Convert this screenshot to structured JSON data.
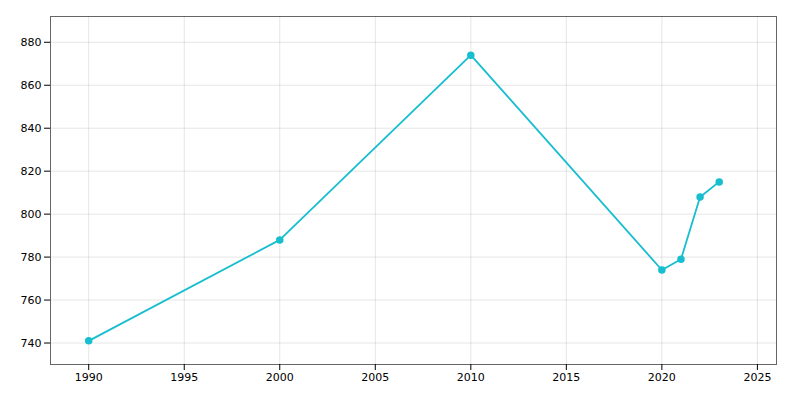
{
  "chart_data": {
    "type": "line",
    "x": [
      1990,
      2000,
      2010,
      2020,
      2021,
      2022,
      2023
    ],
    "values": [
      741,
      788,
      874,
      774,
      779,
      808,
      815
    ],
    "color": "#17becf",
    "marker": "circle",
    "xlim": [
      1988,
      2026
    ],
    "ylim": [
      730,
      892
    ],
    "xticks": [
      1990,
      1995,
      2000,
      2005,
      2010,
      2015,
      2020,
      2025
    ],
    "yticks": [
      740,
      760,
      780,
      800,
      820,
      840,
      860,
      880
    ],
    "grid": true
  }
}
